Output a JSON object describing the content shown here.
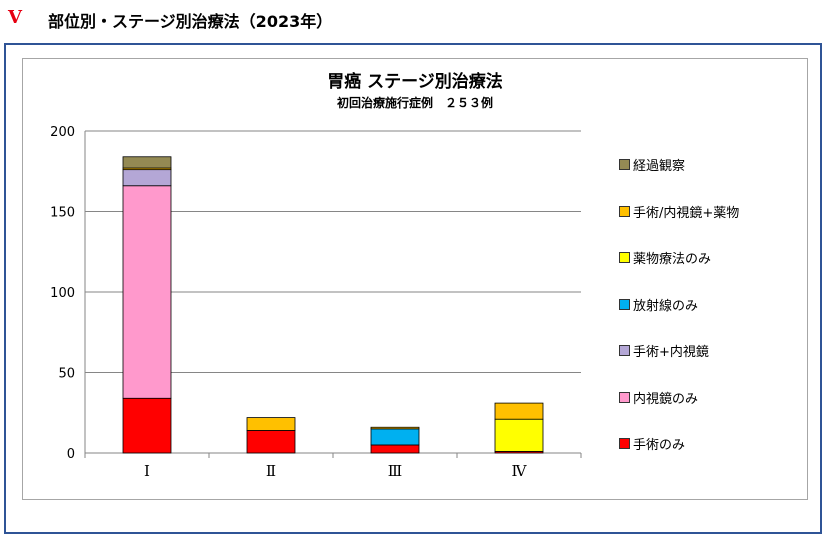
{
  "header": {
    "section_number": "Ⅴ",
    "section_title": "部位別・ステージ別治療法（2023年）"
  },
  "chart_data": {
    "type": "bar",
    "stacked": true,
    "title": "胃癌 ステージ別治療法",
    "subtitle": "初回治療施行症例　２５３例",
    "categories": [
      "Ⅰ",
      "Ⅱ",
      "Ⅲ",
      "Ⅳ"
    ],
    "ylim": [
      0,
      200
    ],
    "yticks": [
      0,
      50,
      100,
      150,
      200
    ],
    "grid": true,
    "legend_position": "right",
    "series": [
      {
        "name": "手術のみ",
        "color": "#ff0000",
        "values": [
          34,
          14,
          5,
          1
        ]
      },
      {
        "name": "内視鏡のみ",
        "color": "#ff99cc",
        "values": [
          132,
          0,
          0,
          0
        ]
      },
      {
        "name": "手術+内視鏡",
        "color": "#b4a7d6",
        "values": [
          10,
          0,
          0,
          0
        ]
      },
      {
        "name": "放射線のみ",
        "color": "#00b0f0",
        "values": [
          0,
          0,
          10,
          0
        ]
      },
      {
        "name": "薬物療法のみ",
        "color": "#ffff00",
        "values": [
          0,
          0,
          0,
          20
        ]
      },
      {
        "name": "手術/内視鏡+薬物",
        "color": "#ffc000",
        "values": [
          1,
          8,
          1,
          10
        ]
      },
      {
        "name": "経過観察",
        "color": "#948a54",
        "values": [
          7,
          0,
          0,
          0
        ]
      }
    ]
  }
}
